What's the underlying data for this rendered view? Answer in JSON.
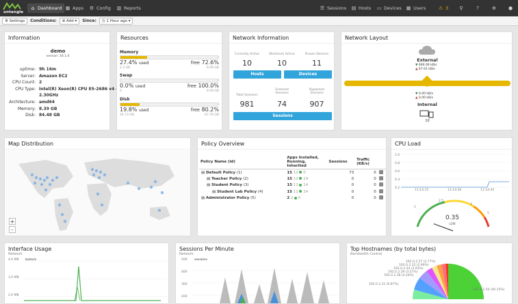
{
  "topbar": {
    "logo_text": "untangle",
    "nav_left": [
      {
        "label": "Dashboard",
        "icon": "home-icon"
      },
      {
        "label": "Apps",
        "icon": "grid-icon"
      },
      {
        "label": "Config",
        "icon": "gear-icon"
      },
      {
        "label": "Reports",
        "icon": "chart-icon"
      }
    ],
    "nav_right": [
      {
        "label": "Sessions",
        "icon": "sessions-icon"
      },
      {
        "label": "Hosts",
        "icon": "hosts-icon"
      },
      {
        "label": "Devices",
        "icon": "devices-icon"
      },
      {
        "label": "Users",
        "icon": "users-icon"
      }
    ],
    "alert_count": "3"
  },
  "subbar": {
    "settings_label": "Settings",
    "conditions_label": "Conditions:",
    "add_label": "Add",
    "since_label": "Since:",
    "since_value": "1 Hour ago"
  },
  "information": {
    "title": "Information",
    "hostname": "demo",
    "version": "version: 16.1.0",
    "rows": [
      {
        "k": "uptime:",
        "v": "9h 16m"
      },
      {
        "k": "Server:",
        "v": "Amazon EC2"
      },
      {
        "k": "CPU Count:",
        "v": "2"
      },
      {
        "k": "CPU Type:",
        "v": "Intel(R) Xeon(R) CPU E5-2686 v4 @"
      },
      {
        "k": "",
        "v": "2.30GHz"
      },
      {
        "k": "Architecture:",
        "v": "amd64"
      },
      {
        "k": "Memory:",
        "v": "8.39 GB"
      },
      {
        "k": "Disk:",
        "v": "84.48 GB"
      }
    ]
  },
  "resources": {
    "title": "Resources",
    "items": [
      {
        "name": "Memory",
        "total": "8.39 GB",
        "used_pct": "27.4%",
        "used_word": "used",
        "used_amt": "2.3 GB",
        "free_word": "free",
        "free_pct": "72.6%",
        "free_amt": "6.09 GB",
        "fill": 0.274
      },
      {
        "name": "Swap",
        "total": "8.59 GB",
        "used_pct": "0.0%",
        "used_word": "used",
        "used_amt": "0",
        "free_word": "free",
        "free_pct": "100.0%",
        "free_amt": "8.59 GB",
        "fill": 0.0
      },
      {
        "name": "Disk",
        "total": "84.48 GB",
        "used_pct": "19.8%",
        "used_word": "used",
        "used_amt": "16.73 GB",
        "free_word": "free",
        "free_pct": "80.2%",
        "free_amt": "67.76 GB",
        "fill": 0.198
      }
    ]
  },
  "network_info": {
    "title": "Network Information",
    "top": [
      {
        "cap": "Currently Active",
        "val": "10"
      },
      {
        "cap": "Maximum Active",
        "val": "10"
      },
      {
        "cap": "Known Devices",
        "val": "11"
      }
    ],
    "hosts_btn": "Hosts",
    "devices_btn": "Devices",
    "bottom": [
      {
        "cap": "Total Sessions",
        "val": "981"
      },
      {
        "cap": "Scanned Sessions",
        "val": "74"
      },
      {
        "cap": "Bypassed Sessions",
        "val": "907"
      }
    ],
    "sessions_btn": "Sessions"
  },
  "network_layout": {
    "title": "Network Layout",
    "external": "External",
    "ext_down": "690.09 kB/s",
    "ext_up": "67.61 kB/s",
    "int_down": "0.00 kB/s",
    "int_up": "0.00 kB/s",
    "internal": "Internal",
    "device_count": "10"
  },
  "map": {
    "title": "Map Distribution",
    "zoom_in": "+",
    "zoom_out": "-"
  },
  "policy": {
    "title": "Policy Overview",
    "headers": [
      "Policy Name (id)",
      "Apps Installed, Running, Inherited",
      "Sessions",
      "Traffic (KB/s)"
    ],
    "rows": [
      {
        "name": "Default Policy",
        "id": "(1)",
        "installed": "15",
        "running": "12",
        "inherited": "0",
        "sessions": "73",
        "traffic": "0",
        "indent": 0
      },
      {
        "name": "Teacher Policy",
        "id": "(2)",
        "installed": "15",
        "running": "12",
        "inherited": "14",
        "sessions": "0",
        "traffic": "0",
        "indent": 1
      },
      {
        "name": "Student Policy",
        "id": "(3)",
        "installed": "15",
        "running": "12",
        "inherited": "14",
        "sessions": "0",
        "traffic": "0",
        "indent": 1
      },
      {
        "name": "Student Lab Policy",
        "id": "(4)",
        "installed": "15",
        "running": "11",
        "inherited": "14",
        "sessions": "0",
        "traffic": "0",
        "indent": 2
      },
      {
        "name": "Administrator Policy",
        "id": "(5)",
        "installed": "2",
        "running": "2",
        "inherited": "0",
        "sessions": "0",
        "traffic": "0",
        "indent": 0
      }
    ]
  },
  "cpu": {
    "title": "CPU Load",
    "y_ticks": [
      "1.0",
      "0.8",
      "0.6",
      "0.4",
      "0.2"
    ],
    "x_ticks": [
      "11:14:15",
      "11:14:30",
      "11:14:45"
    ],
    "gauge_labels": [
      "1",
      "2.5",
      "3",
      "5"
    ],
    "value": "0.35",
    "level": "LOW",
    "load": 0.35
  },
  "interface_usage": {
    "title": "Interface Usage",
    "subtitle": "Network",
    "y_ticks": [
      "4.0 MB",
      "3.0 MB",
      "2.0 MB"
    ],
    "unit": "bytes/s"
  },
  "sessions_minute": {
    "title": "Sessions Per Minute",
    "subtitle": "Network",
    "y_ticks": [
      "500",
      "400",
      "300",
      "200"
    ],
    "unit": "sessions"
  },
  "top_hostnames": {
    "title": "Top Hostnames (by total bytes)",
    "subtitle": "Bandwidth Control",
    "labels": [
      "192.0.2.57 (2.77%)",
      "192.0.2.32 (2.99%)",
      "192.0.2.34 (3.03%)",
      "192.0.2.29 (3.57%)",
      "192.0.2.38 (4.34%)",
      "192.0.2.31 (6.87%)",
      "192.0.2.50 (40.15%)"
    ],
    "colors": [
      "#4cd137",
      "#e84118",
      "#ff6b81",
      "#f6e58d",
      "#7bed9f",
      "#e056fd",
      "#a29bfe",
      "#ff9f43",
      "#54a0ff"
    ]
  }
}
